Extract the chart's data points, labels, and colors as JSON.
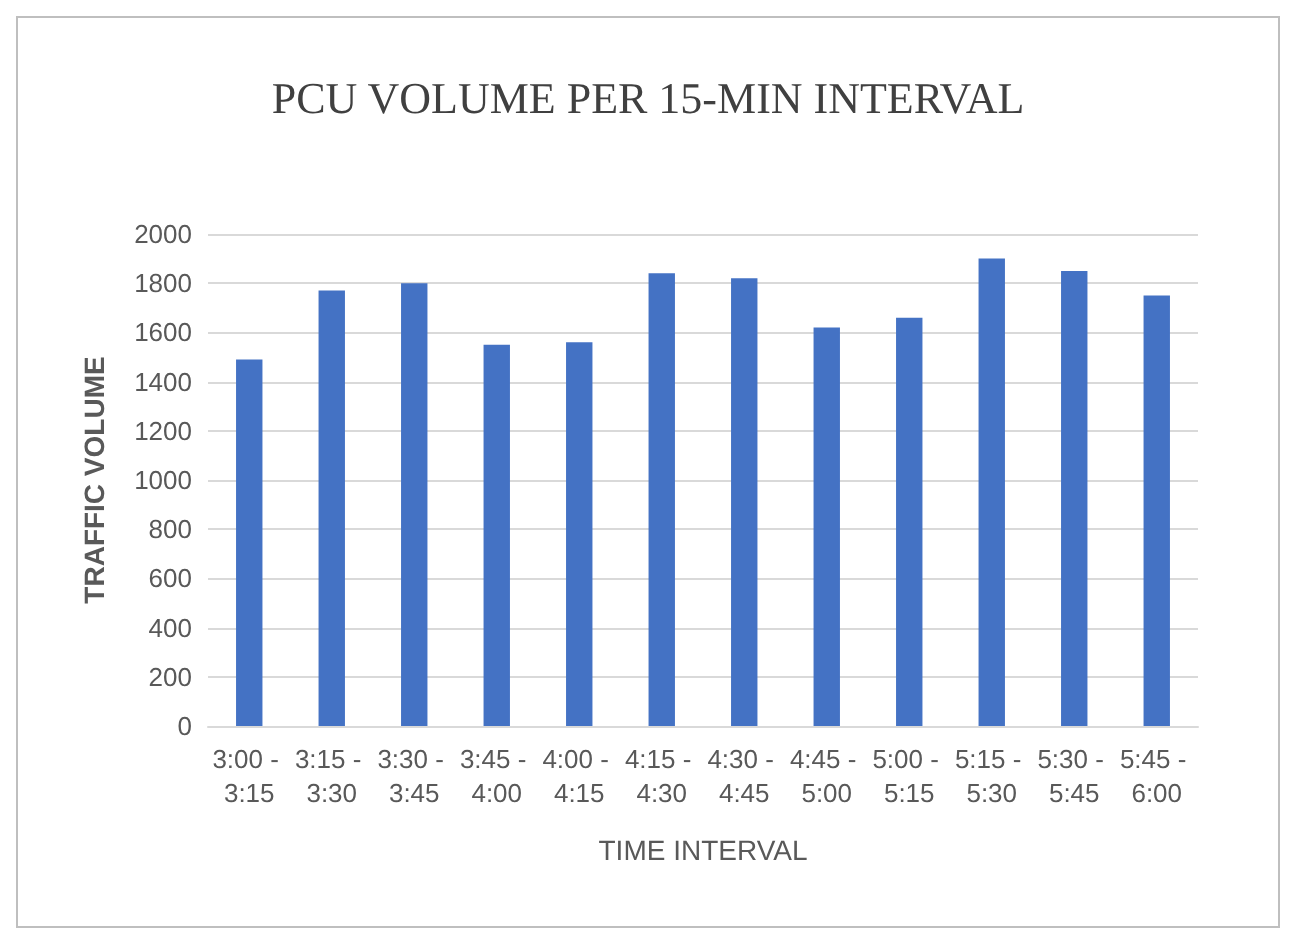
{
  "chart_data": {
    "type": "bar",
    "title": "PCU VOLUME PER 15-MIN INTERVAL",
    "xlabel": "TIME INTERVAL",
    "ylabel": "TRAFFIC VOLUME",
    "categories": [
      "3:00 - 3:15",
      "3:15 - 3:30",
      "3:30 - 3:45",
      "3:45 - 4:00",
      "4:00 - 4:15",
      "4:15 - 4:30",
      "4:30 - 4:45",
      "4:45 - 5:00",
      "5:00 - 5:15",
      "5:15 - 5:30",
      "5:30 - 5:45",
      "5:45 - 6:00"
    ],
    "values": [
      1490,
      1770,
      1800,
      1550,
      1560,
      1840,
      1820,
      1620,
      1660,
      1900,
      1850,
      1750
    ],
    "color": "#4472c4",
    "ylim": [
      0,
      2000
    ],
    "yticks": [
      0,
      200,
      400,
      600,
      800,
      1000,
      1200,
      1400,
      1600,
      1800,
      2000
    ],
    "grid": "y"
  }
}
